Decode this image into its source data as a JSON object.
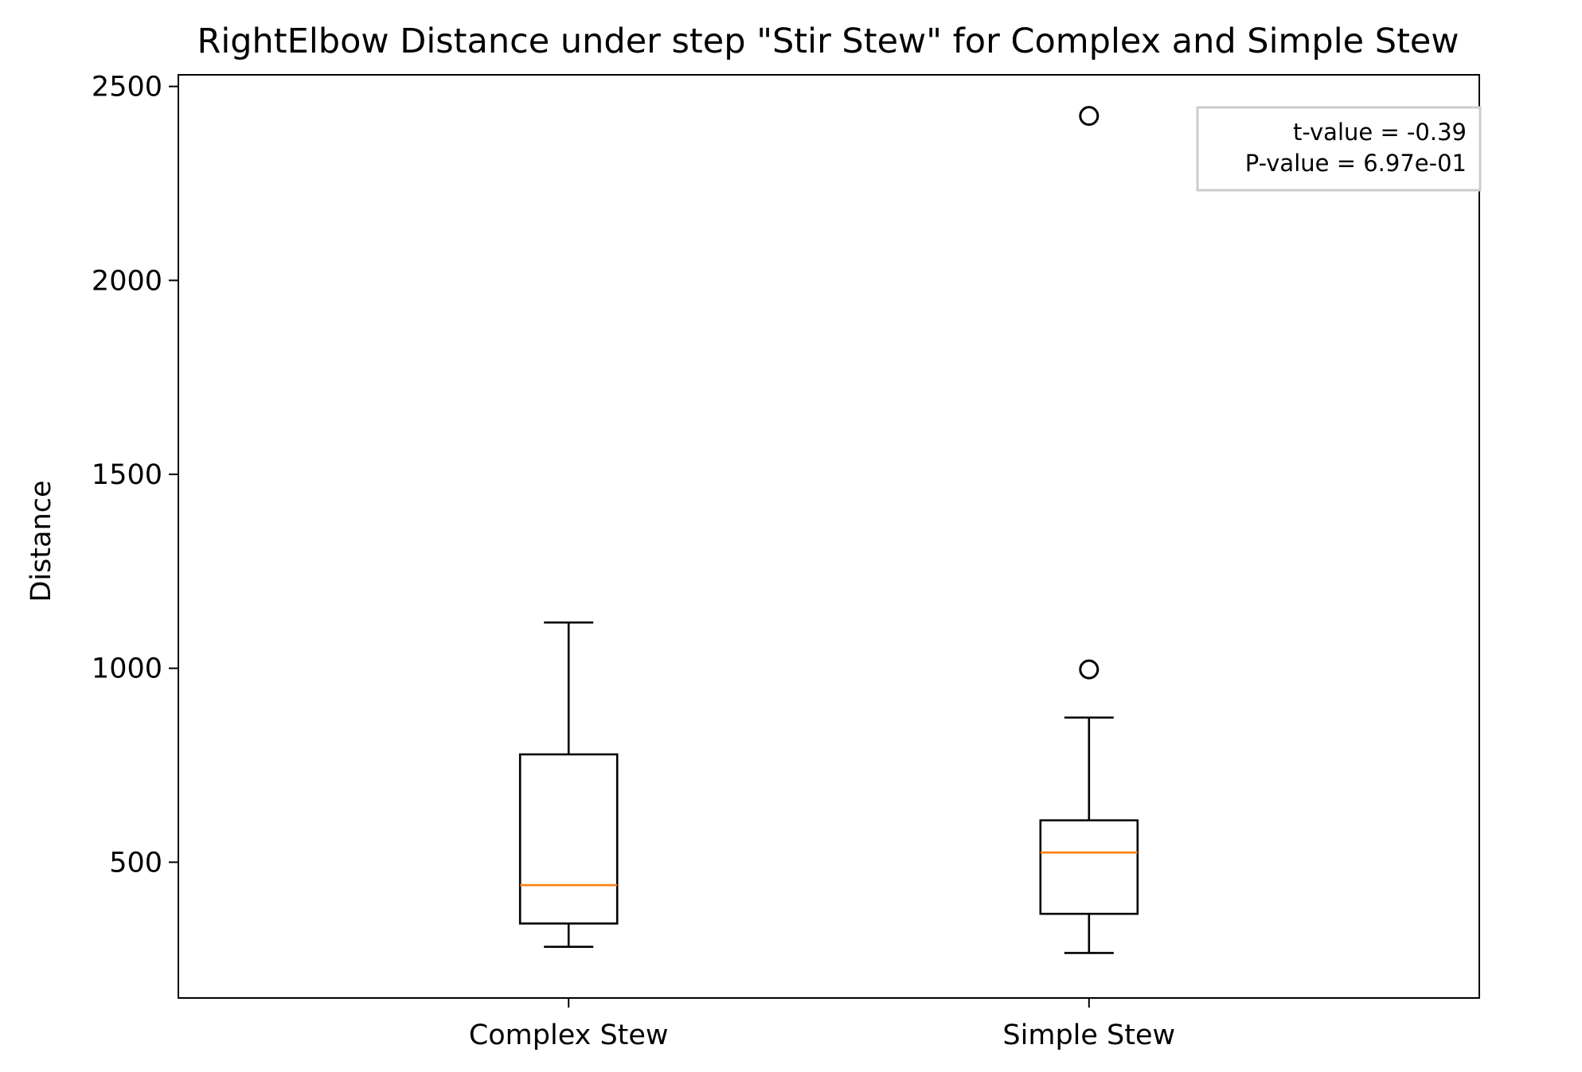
{
  "chart_data": {
    "type": "box",
    "title": "RightElbow Distance under step \"Stir Stew\" for Complex and Simple Stew",
    "xlabel": "",
    "ylabel": "Distance",
    "categories": [
      "Complex Stew",
      "Simple Stew"
    ],
    "ylim": [
      150,
      2530
    ],
    "yticks": [
      500,
      1000,
      1500,
      2000,
      2500
    ],
    "boxes": [
      {
        "category": "Complex Stew",
        "whisker_low": 282,
        "q1": 342,
        "median": 441,
        "q3": 778,
        "whisker_high": 1118,
        "fliers": []
      },
      {
        "category": "Simple Stew",
        "whisker_low": 266,
        "q1": 367,
        "median": 525,
        "q3": 608,
        "whisker_high": 873,
        "fliers": [
          997,
          2424
        ]
      }
    ],
    "box_color": "#000000",
    "median_color": "#ff7f0e",
    "grid": false,
    "annotation": {
      "lines": [
        "t-value = -0.39",
        "P-value = 6.97e-01"
      ],
      "placement": "top-right",
      "border_color": "#cccccc"
    }
  }
}
